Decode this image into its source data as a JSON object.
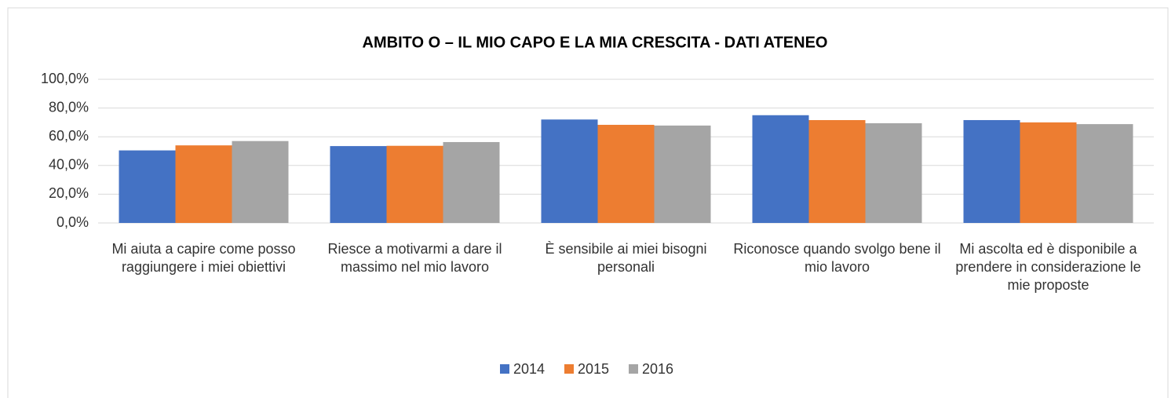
{
  "chart_data": {
    "type": "bar",
    "title": "AMBITO O – IL MIO CAPO E LA MIA CRESCITA  - DATI ATENEO",
    "categories": [
      "Mi aiuta a capire come posso raggiungere i miei obiettivi",
      "Riesce a motivarmi a dare il massimo nel mio lavoro",
      "È sensibile ai miei bisogni personali",
      "Riconosce quando svolgo bene il mio lavoro",
      "Mi ascolta ed è disponibile a prendere in considerazione le mie proposte"
    ],
    "series": [
      {
        "name": "2014",
        "color": "#4472c4",
        "values": [
          50.5,
          53.5,
          72,
          75,
          71.6
        ]
      },
      {
        "name": "2015",
        "color": "#ed7d31",
        "values": [
          54,
          53.7,
          68.3,
          71.6,
          70
        ]
      },
      {
        "name": "2016",
        "color": "#a5a5a5",
        "values": [
          57,
          56.3,
          67.8,
          69.4,
          68.8
        ]
      }
    ],
    "ylim": [
      0,
      100
    ],
    "yticks": [
      {
        "value": 0,
        "label": "0,0%"
      },
      {
        "value": 20,
        "label": "20,0%"
      },
      {
        "value": 40,
        "label": "40,0%"
      },
      {
        "value": 60,
        "label": "60,0%"
      },
      {
        "value": 80,
        "label": "80,0%"
      },
      {
        "value": 100,
        "label": "100,0%"
      }
    ],
    "grid": true,
    "legend": "bottom"
  }
}
